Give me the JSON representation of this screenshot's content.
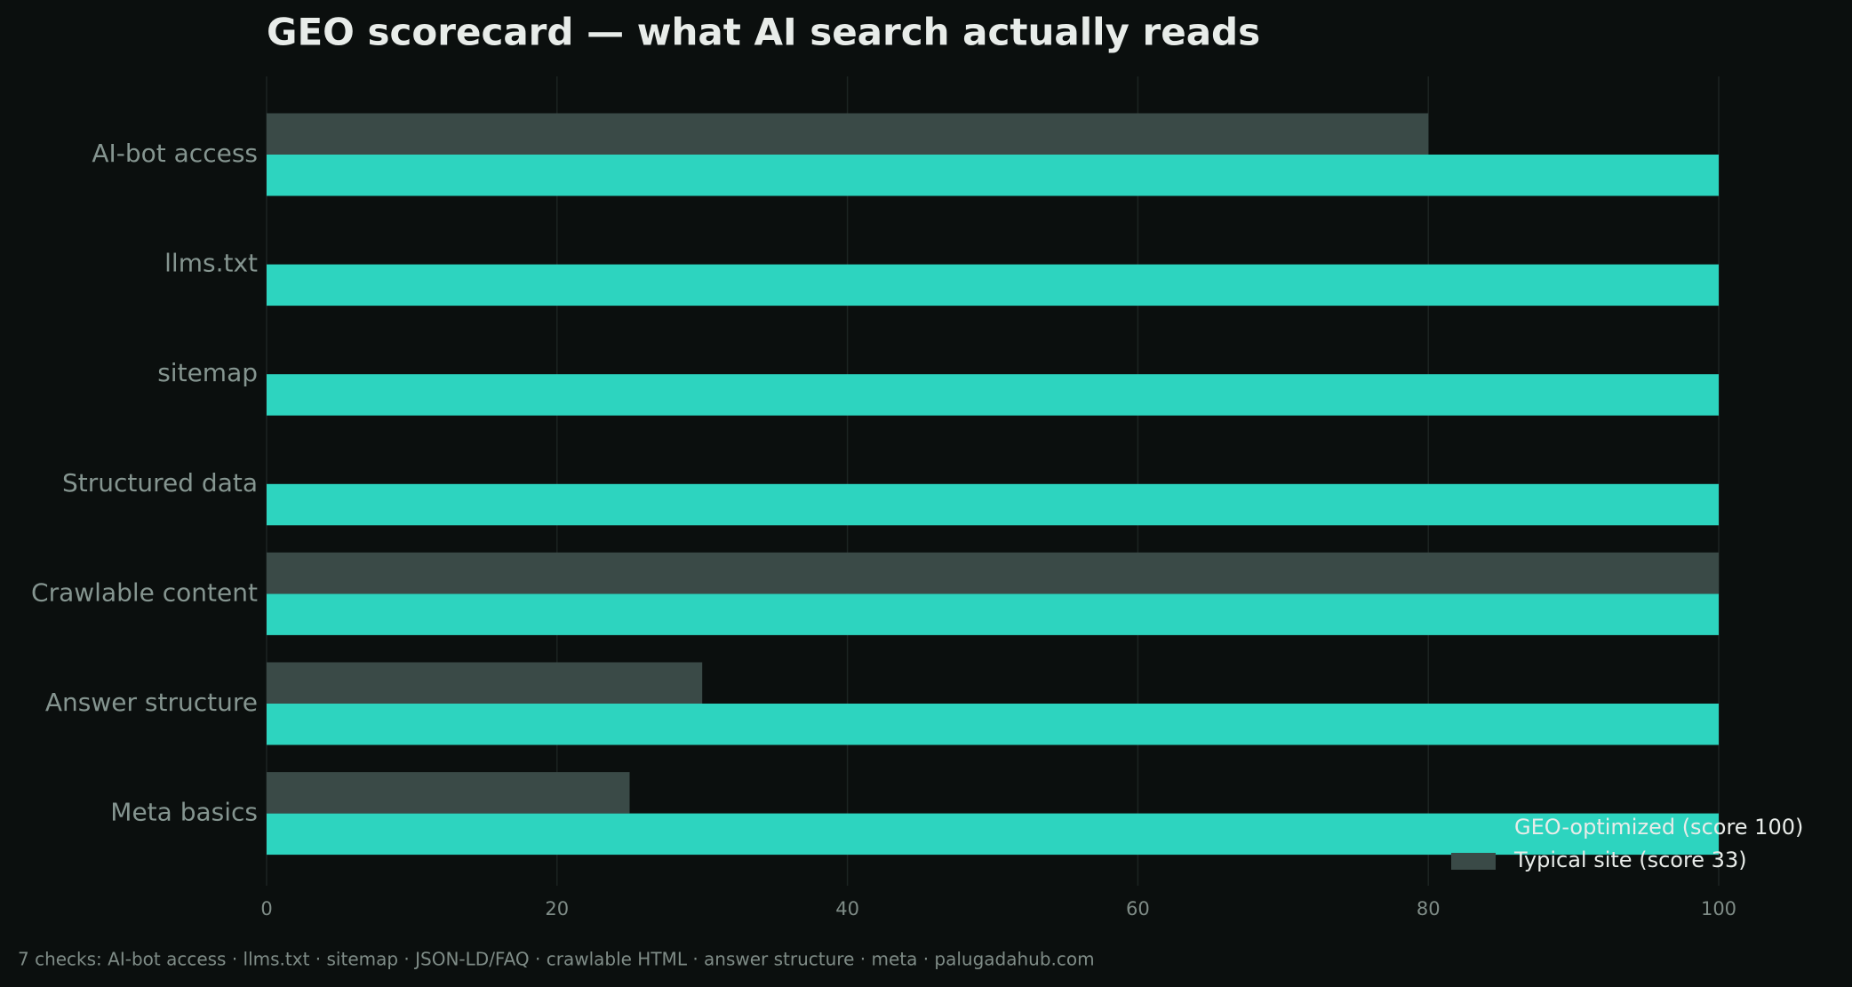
{
  "chart_data": {
    "type": "bar",
    "orientation": "horizontal",
    "title": "GEO scorecard — what AI search actually reads",
    "categories": [
      "AI-bot access",
      "llms.txt",
      "sitemap",
      "Structured data",
      "Crawlable content",
      "Answer structure",
      "Meta basics"
    ],
    "series": [
      {
        "name": "GEO-optimized (score 100)",
        "color": "#2dd4bf",
        "values": [
          100,
          100,
          100,
          100,
          100,
          100,
          100
        ]
      },
      {
        "name": "Typical site (score 33)",
        "color": "#3a4a47",
        "values": [
          80,
          0,
          0,
          0,
          100,
          30,
          25
        ]
      }
    ],
    "xlim": [
      0,
      100
    ],
    "xticks": [
      0,
      20,
      40,
      60,
      80,
      100
    ],
    "grid": true,
    "legend": "lower right",
    "footnote": "7 checks: AI-bot access · llms.txt · sitemap · JSON-LD/FAQ · crawlable HTML · answer structure · meta · palugadahub.com"
  }
}
